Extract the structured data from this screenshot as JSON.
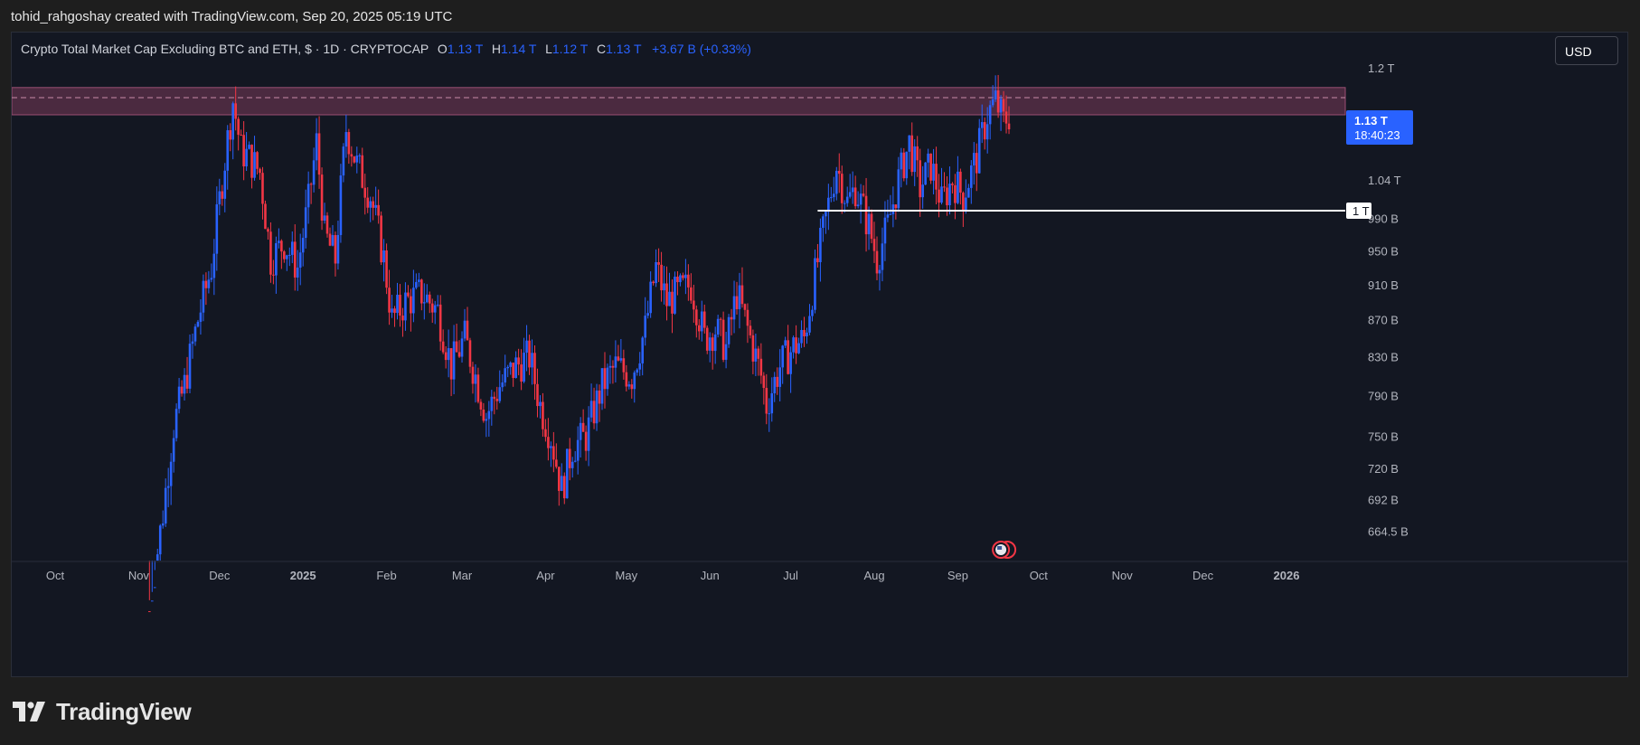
{
  "credit": "tohid_rahgoshay created with TradingView.com, Sep 20, 2025 05:19 UTC",
  "legend": {
    "symbol": "Crypto Total Market Cap Excluding BTC and ETH, $ · 1D · CRYPTOCAP",
    "o_label": "O",
    "o_value": "1.13 T",
    "h_label": "H",
    "h_value": "1.14 T",
    "l_label": "L",
    "l_value": "1.12 T",
    "c_label": "C",
    "c_value": "1.13 T",
    "change": "+3.67 B (+0.33%)"
  },
  "currency_button": "USD",
  "brand": "TradingView",
  "colors": {
    "bg": "#131722",
    "up": "#2962ff",
    "down": "#f23645",
    "zone": "#7a3a5a",
    "text": "#b2b5be"
  },
  "chart_data": {
    "type": "candlestick",
    "title": "Crypto Total Market Cap Excluding BTC and ETH, $ · 1D · CRYPTOCAP",
    "y_scale": "log",
    "ylim_B": [
      640,
      1255
    ],
    "y_ticks": [
      {
        "label": "1.2 T",
        "value": 1200
      },
      {
        "label": "1.04 T",
        "value": 1040
      },
      {
        "label": "990 B",
        "value": 990
      },
      {
        "label": "950 B",
        "value": 950
      },
      {
        "label": "910 B",
        "value": 910
      },
      {
        "label": "870 B",
        "value": 870
      },
      {
        "label": "830 B",
        "value": 830
      },
      {
        "label": "790 B",
        "value": 790
      },
      {
        "label": "750 B",
        "value": 750
      },
      {
        "label": "720 B",
        "value": 720
      },
      {
        "label": "692 B",
        "value": 692
      },
      {
        "label": "664.5 B",
        "value": 664.5
      }
    ],
    "x_ticks": [
      {
        "label": "Oct",
        "date": "2024-10-01"
      },
      {
        "label": "Nov",
        "date": "2024-11-01"
      },
      {
        "label": "Dec",
        "date": "2024-12-01"
      },
      {
        "label": "2025",
        "date": "2025-01-01",
        "bold": true
      },
      {
        "label": "Feb",
        "date": "2025-02-01"
      },
      {
        "label": "Mar",
        "date": "2025-03-01"
      },
      {
        "label": "Apr",
        "date": "2025-04-01"
      },
      {
        "label": "May",
        "date": "2025-05-01"
      },
      {
        "label": "Jun",
        "date": "2025-06-01"
      },
      {
        "label": "Jul",
        "date": "2025-07-01"
      },
      {
        "label": "Aug",
        "date": "2025-08-01"
      },
      {
        "label": "Sep",
        "date": "2025-09-01"
      },
      {
        "label": "Oct",
        "date": "2025-10-01"
      },
      {
        "label": "Nov",
        "date": "2025-11-01"
      },
      {
        "label": "Dec",
        "date": "2025-12-01"
      },
      {
        "label": "2026",
        "date": "2026-01-01",
        "bold": true
      }
    ],
    "series_anchors": [
      {
        "date": "2024-11-05",
        "close_B": 600
      },
      {
        "date": "2024-11-10",
        "close_B": 680
      },
      {
        "date": "2024-11-14",
        "close_B": 760
      },
      {
        "date": "2024-11-18",
        "close_B": 800
      },
      {
        "date": "2024-11-23",
        "close_B": 870
      },
      {
        "date": "2024-11-28",
        "close_B": 930
      },
      {
        "date": "2024-12-02",
        "close_B": 1040
      },
      {
        "date": "2024-12-06",
        "close_B": 1150
      },
      {
        "date": "2024-12-09",
        "close_B": 1080
      },
      {
        "date": "2024-12-12",
        "close_B": 1070
      },
      {
        "date": "2024-12-16",
        "close_B": 1050
      },
      {
        "date": "2024-12-20",
        "close_B": 940
      },
      {
        "date": "2024-12-25",
        "close_B": 960
      },
      {
        "date": "2024-12-30",
        "close_B": 930
      },
      {
        "date": "2025-01-03",
        "close_B": 1010
      },
      {
        "date": "2025-01-06",
        "close_B": 1090
      },
      {
        "date": "2025-01-09",
        "close_B": 970
      },
      {
        "date": "2025-01-13",
        "close_B": 940
      },
      {
        "date": "2025-01-17",
        "close_B": 1110
      },
      {
        "date": "2025-01-21",
        "close_B": 1060
      },
      {
        "date": "2025-01-26",
        "close_B": 1020
      },
      {
        "date": "2025-01-31",
        "close_B": 940
      },
      {
        "date": "2025-02-03",
        "close_B": 870
      },
      {
        "date": "2025-02-08",
        "close_B": 890
      },
      {
        "date": "2025-02-14",
        "close_B": 900
      },
      {
        "date": "2025-02-20",
        "close_B": 880
      },
      {
        "date": "2025-02-25",
        "close_B": 820
      },
      {
        "date": "2025-03-02",
        "close_B": 850
      },
      {
        "date": "2025-03-06",
        "close_B": 810
      },
      {
        "date": "2025-03-10",
        "close_B": 770
      },
      {
        "date": "2025-03-15",
        "close_B": 800
      },
      {
        "date": "2025-03-21",
        "close_B": 820
      },
      {
        "date": "2025-03-26",
        "close_B": 830
      },
      {
        "date": "2025-03-30",
        "close_B": 780
      },
      {
        "date": "2025-04-03",
        "close_B": 750
      },
      {
        "date": "2025-04-07",
        "close_B": 700
      },
      {
        "date": "2025-04-11",
        "close_B": 740
      },
      {
        "date": "2025-04-16",
        "close_B": 750
      },
      {
        "date": "2025-04-22",
        "close_B": 800
      },
      {
        "date": "2025-04-27",
        "close_B": 820
      },
      {
        "date": "2025-05-03",
        "close_B": 810
      },
      {
        "date": "2025-05-08",
        "close_B": 860
      },
      {
        "date": "2025-05-12",
        "close_B": 930
      },
      {
        "date": "2025-05-16",
        "close_B": 890
      },
      {
        "date": "2025-05-20",
        "close_B": 900
      },
      {
        "date": "2025-05-25",
        "close_B": 910
      },
      {
        "date": "2025-05-30",
        "close_B": 850
      },
      {
        "date": "2025-06-03",
        "close_B": 860
      },
      {
        "date": "2025-06-07",
        "close_B": 840
      },
      {
        "date": "2025-06-11",
        "close_B": 900
      },
      {
        "date": "2025-06-16",
        "close_B": 850
      },
      {
        "date": "2025-06-20",
        "close_B": 810
      },
      {
        "date": "2025-06-22",
        "close_B": 780
      },
      {
        "date": "2025-06-27",
        "close_B": 820
      },
      {
        "date": "2025-07-02",
        "close_B": 840
      },
      {
        "date": "2025-07-06",
        "close_B": 850
      },
      {
        "date": "2025-07-10",
        "close_B": 920
      },
      {
        "date": "2025-07-14",
        "close_B": 990
      },
      {
        "date": "2025-07-18",
        "close_B": 1060
      },
      {
        "date": "2025-07-22",
        "close_B": 1010
      },
      {
        "date": "2025-07-25",
        "close_B": 1030
      },
      {
        "date": "2025-07-30",
        "close_B": 980
      },
      {
        "date": "2025-08-02",
        "close_B": 940
      },
      {
        "date": "2025-08-06",
        "close_B": 980
      },
      {
        "date": "2025-08-10",
        "close_B": 1040
      },
      {
        "date": "2025-08-14",
        "close_B": 1090
      },
      {
        "date": "2025-08-18",
        "close_B": 1030
      },
      {
        "date": "2025-08-22",
        "close_B": 1060
      },
      {
        "date": "2025-08-26",
        "close_B": 1010
      },
      {
        "date": "2025-08-30",
        "close_B": 1040
      },
      {
        "date": "2025-09-03",
        "close_B": 1020
      },
      {
        "date": "2025-09-08",
        "close_B": 1070
      },
      {
        "date": "2025-09-12",
        "close_B": 1130
      },
      {
        "date": "2025-09-15",
        "close_B": 1150
      },
      {
        "date": "2025-09-18",
        "close_B": 1120
      },
      {
        "date": "2025-09-20",
        "close_B": 1130
      }
    ],
    "resistance_zone_B": [
      1130,
      1170
    ],
    "resistance_mid_B": 1155,
    "support_line": {
      "label": "1 T",
      "value_B": 1000,
      "start": "2025-07-11"
    },
    "last_price": {
      "label": "1.13 T",
      "countdown": "18:40:23",
      "value_B": 1130
    }
  }
}
